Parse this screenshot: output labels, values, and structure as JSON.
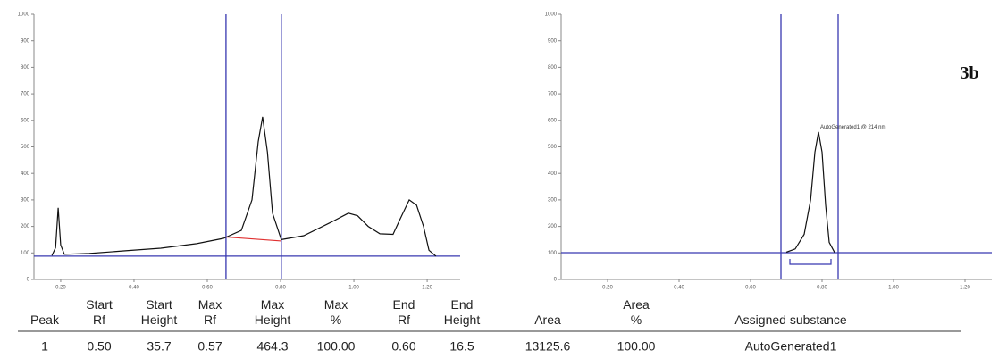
{
  "chart_data": [
    {
      "type": "line",
      "xlim": [
        0.127,
        1.29
      ],
      "ylim": [
        0,
        1000
      ],
      "xticks": [
        {
          "value": 0.2,
          "label": "0.20"
        },
        {
          "value": 0.4,
          "label": "0.40"
        },
        {
          "value": 0.6,
          "label": "0.60"
        },
        {
          "value": 0.8,
          "label": "0.80"
        },
        {
          "value": 1.0,
          "label": "1.00"
        },
        {
          "value": 1.2,
          "label": "1.20"
        }
      ],
      "yticks": [
        0,
        100,
        200,
        300,
        400,
        500,
        600,
        700,
        800,
        900,
        1000
      ],
      "x": [
        0.176,
        0.186,
        0.193,
        0.2,
        0.21,
        0.278,
        0.376,
        0.473,
        0.571,
        0.644,
        0.693,
        0.722,
        0.739,
        0.751,
        0.764,
        0.778,
        0.802,
        0.863,
        0.937,
        0.985,
        1.01,
        1.039,
        1.071,
        1.107,
        1.127,
        1.151,
        1.171,
        1.19,
        1.205,
        1.224
      ],
      "series": [
        {
          "color": "#111111",
          "values": [
            90,
            120,
            270,
            130,
            95,
            98,
            108,
            118,
            135,
            155,
            185,
            300,
            520,
            613,
            480,
            250,
            150,
            165,
            215,
            250,
            240,
            200,
            172,
            170,
            230,
            300,
            280,
            200,
            110,
            88
          ]
        }
      ],
      "baseline_segment": {
        "x": [
          0.651,
          0.802
        ],
        "values": [
          160,
          145
        ],
        "color": "#e03030"
      },
      "cursors": {
        "x": [
          0.651,
          0.802
        ],
        "color": "#3838b0"
      },
      "baseline": {
        "value": 88,
        "color": "#3838b0"
      }
    },
    {
      "type": "line",
      "xlim": [
        0.07,
        1.275
      ],
      "ylim": [
        0,
        1000
      ],
      "xticks": [
        {
          "value": 0.2,
          "label": "0.20"
        },
        {
          "value": 0.4,
          "label": "0.40"
        },
        {
          "value": 0.6,
          "label": "0.60"
        },
        {
          "value": 0.8,
          "label": "0.80"
        },
        {
          "value": 1.0,
          "label": "1.00"
        },
        {
          "value": 1.2,
          "label": "1.20"
        }
      ],
      "yticks": [
        0,
        100,
        200,
        300,
        400,
        500,
        600,
        700,
        800,
        900,
        1000
      ],
      "x": [
        0.7,
        0.725,
        0.75,
        0.768,
        0.78,
        0.79,
        0.8,
        0.81,
        0.82,
        0.835
      ],
      "series": [
        {
          "color": "#111111",
          "values": [
            103,
            115,
            170,
            300,
            480,
            556,
            480,
            280,
            140,
            102
          ]
        }
      ],
      "cursors": {
        "x": [
          0.685,
          0.845
        ],
        "color": "#3838b0"
      },
      "baseline": {
        "value": 101,
        "color": "#3838b0"
      },
      "annotations": [
        {
          "text": "AutoGenerated1 @ 214 nm",
          "x": 0.79,
          "y": 556
        }
      ],
      "label": "3b"
    }
  ],
  "table": {
    "header": [
      [
        "Peak"
      ],
      [
        "Start",
        "Rf"
      ],
      [
        "Start",
        "Height"
      ],
      [
        "Max",
        "Rf"
      ],
      [
        "Max",
        "Height"
      ],
      [
        "Max",
        "%"
      ],
      [
        "End",
        "Rf"
      ],
      [
        "End",
        "Height"
      ],
      [
        "Area"
      ],
      [
        "Area",
        "%"
      ],
      [
        "Assigned substance"
      ]
    ],
    "rows": [
      [
        "1",
        "0.50",
        "35.7",
        "0.57",
        "464.3",
        "100.00",
        "0.60",
        "16.5",
        "13125.6",
        "100.00",
        "AutoGenerated1"
      ]
    ]
  }
}
